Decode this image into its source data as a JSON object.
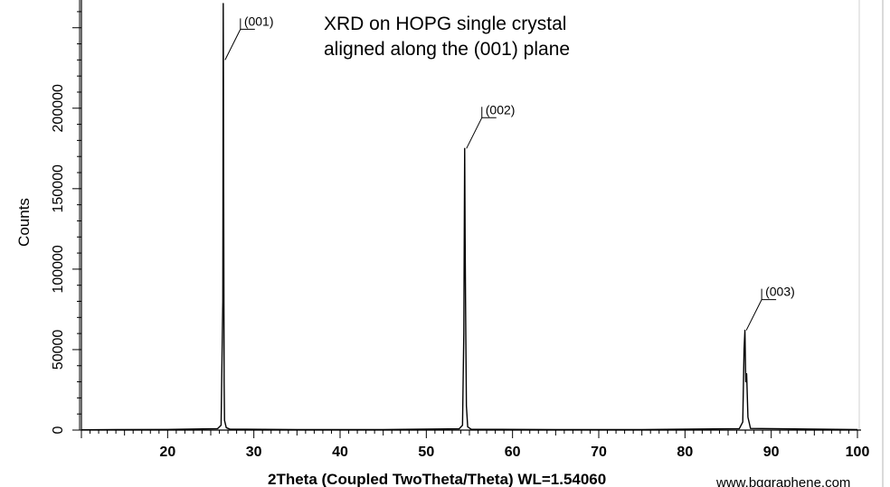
{
  "chart_data": {
    "type": "line",
    "title_lines": [
      "XRD on HOPG single crystal",
      "aligned along the (001) plane"
    ],
    "xlabel": "2Theta (Coupled TwoTheta/Theta) WL=1.54060",
    "ylabel": "Counts",
    "xlim": [
      10,
      100
    ],
    "ylim": [
      0,
      265000
    ],
    "x_ticks": [
      20,
      30,
      40,
      50,
      60,
      70,
      80,
      90,
      100
    ],
    "y_ticks": [
      0,
      50000,
      100000,
      150000,
      200000
    ],
    "grid": false,
    "legend": "none",
    "series": [
      {
        "color": "#000000",
        "x": [
          10.0,
          20.0,
          25.8,
          26.2,
          26.4,
          26.45,
          26.5,
          26.55,
          26.6,
          26.8,
          27.2,
          35.0,
          45.0,
          53.8,
          54.2,
          54.35,
          54.45,
          54.5,
          54.55,
          54.65,
          54.8,
          55.2,
          65.0,
          75.0,
          86.3,
          86.7,
          86.85,
          86.95,
          87.05,
          87.15,
          87.3,
          87.6,
          100.0
        ],
        "y": [
          200,
          400,
          900,
          3000,
          80000,
          265000,
          150000,
          30000,
          6000,
          1500,
          600,
          300,
          300,
          800,
          3000,
          60000,
          175000,
          120000,
          80000,
          15000,
          2000,
          500,
          300,
          300,
          900,
          5000,
          50000,
          62000,
          30000,
          35000,
          8000,
          1000,
          300
        ]
      }
    ],
    "annotations": [
      {
        "text": "(001)",
        "x": 26.45,
        "y": 230000
      },
      {
        "text": "(002)",
        "x": 54.45,
        "y": 175000
      },
      {
        "text": "(003)",
        "x": 86.9,
        "y": 62000
      }
    ]
  },
  "watermark": "www.bggraphene.com"
}
